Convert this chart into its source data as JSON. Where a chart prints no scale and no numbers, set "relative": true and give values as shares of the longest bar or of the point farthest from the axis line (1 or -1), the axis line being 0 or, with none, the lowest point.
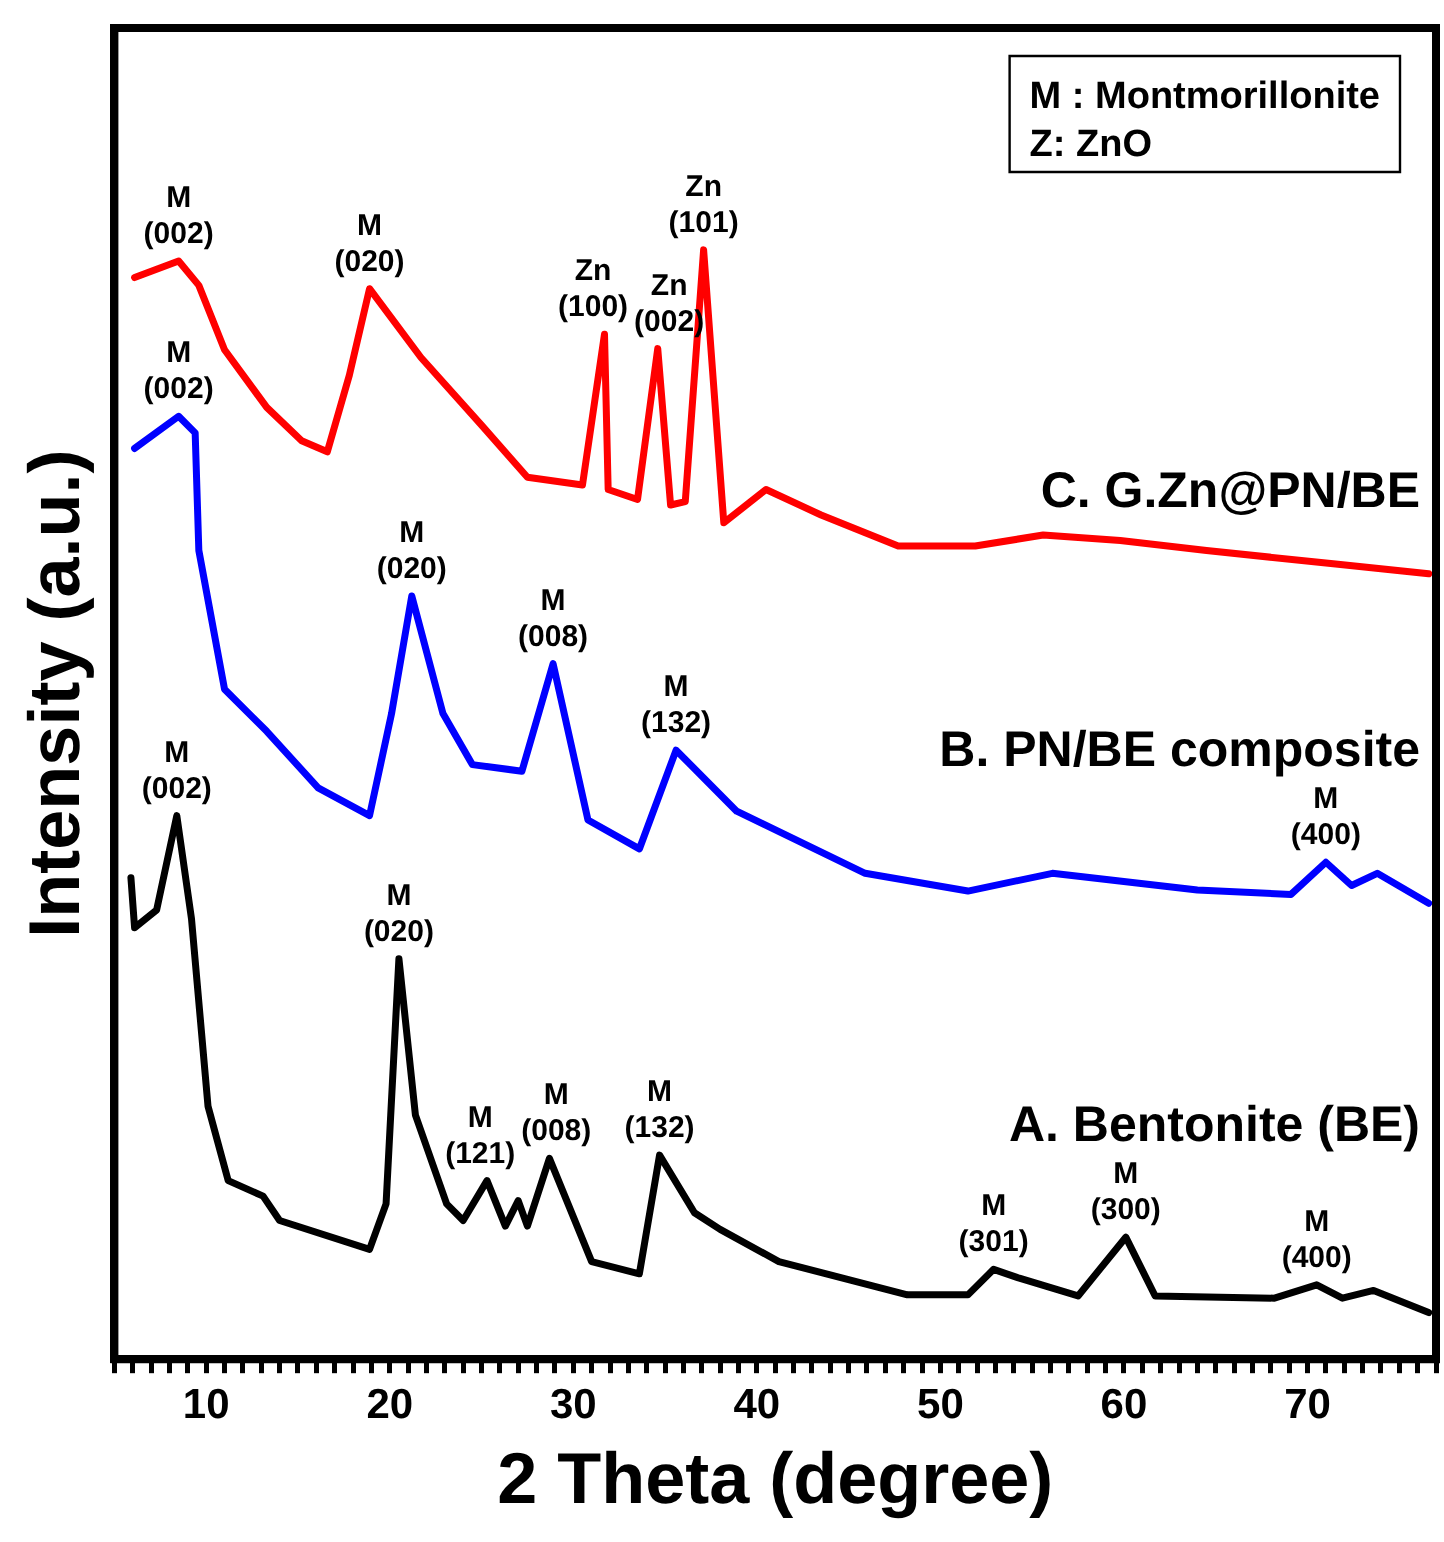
{
  "chart_data": {
    "type": "line",
    "xlabel": "2 Theta (degree)",
    "ylabel": "Intensity (a.u.)",
    "relative": true,
    "tick_labels": "x",
    "xlim": [
      5,
      77
    ],
    "xticks": [
      {
        "value": 5,
        "label": null
      },
      {
        "value": 6,
        "label": null
      },
      {
        "value": 7,
        "label": null
      },
      {
        "value": 8,
        "label": null
      },
      {
        "value": 9,
        "label": null
      },
      10,
      {
        "value": 11,
        "label": null
      },
      {
        "value": 12,
        "label": null
      },
      {
        "value": 13,
        "label": null
      },
      {
        "value": 14,
        "label": null
      },
      {
        "value": 15,
        "label": null
      },
      {
        "value": 16,
        "label": null
      },
      {
        "value": 17,
        "label": null
      },
      {
        "value": 18,
        "label": null
      },
      {
        "value": 19,
        "label": null
      },
      20,
      {
        "value": 21,
        "label": null
      },
      {
        "value": 22,
        "label": null
      },
      {
        "value": 23,
        "label": null
      },
      {
        "value": 24,
        "label": null
      },
      {
        "value": 25,
        "label": null
      },
      {
        "value": 26,
        "label": null
      },
      {
        "value": 27,
        "label": null
      },
      {
        "value": 28,
        "label": null
      },
      {
        "value": 29,
        "label": null
      },
      30,
      {
        "value": 31,
        "label": null
      },
      {
        "value": 32,
        "label": null
      },
      {
        "value": 33,
        "label": null
      },
      {
        "value": 34,
        "label": null
      },
      {
        "value": 35,
        "label": null
      },
      {
        "value": 36,
        "label": null
      },
      {
        "value": 37,
        "label": null
      },
      {
        "value": 38,
        "label": null
      },
      {
        "value": 39,
        "label": null
      },
      40,
      {
        "value": 41,
        "label": null
      },
      {
        "value": 42,
        "label": null
      },
      {
        "value": 43,
        "label": null
      },
      {
        "value": 44,
        "label": null
      },
      {
        "value": 45,
        "label": null
      },
      {
        "value": 46,
        "label": null
      },
      {
        "value": 47,
        "label": null
      },
      {
        "value": 48,
        "label": null
      },
      {
        "value": 49,
        "label": null
      },
      50,
      {
        "value": 51,
        "label": null
      },
      {
        "value": 52,
        "label": null
      },
      {
        "value": 53,
        "label": null
      },
      {
        "value": 54,
        "label": null
      },
      {
        "value": 55,
        "label": null
      },
      {
        "value": 56,
        "label": null
      },
      {
        "value": 57,
        "label": null
      },
      {
        "value": 58,
        "label": null
      },
      {
        "value": 59,
        "label": null
      },
      60,
      {
        "value": 61,
        "label": null
      },
      {
        "value": 62,
        "label": null
      },
      {
        "value": 63,
        "label": null
      },
      {
        "value": 64,
        "label": null
      },
      {
        "value": 65,
        "label": null
      },
      {
        "value": 66,
        "label": null
      },
      {
        "value": 67,
        "label": null
      },
      {
        "value": 68,
        "label": null
      },
      {
        "value": 69,
        "label": null
      },
      70,
      {
        "value": 71,
        "label": null
      },
      {
        "value": 72,
        "label": null
      },
      {
        "value": 73,
        "label": null
      },
      {
        "value": 74,
        "label": null
      },
      {
        "value": 75,
        "label": null
      },
      {
        "value": 76,
        "label": null
      },
      {
        "value": 77,
        "label": null
      }
    ],
    "series": [
      {
        "name": "C. G.Zn@PN/BE",
        "color": "#ff0000",
        "x": [
          6.1,
          8.5,
          9.6,
          11.0,
          13.3,
          15.2,
          16.6,
          17.8,
          18.9,
          21.7,
          25.0,
          27.5,
          30.5,
          31.7,
          31.9,
          33.5,
          34.6,
          35.3,
          36.1,
          37.1,
          38.2,
          40.5,
          43.5,
          47.7,
          51.9,
          55.6,
          59.8,
          64.5,
          71.4,
          76.6
        ],
        "values": [
          0.975,
          0.99,
          0.968,
          0.91,
          0.858,
          0.828,
          0.818,
          0.887,
          0.965,
          0.903,
          0.842,
          0.795,
          0.788,
          0.924,
          0.784,
          0.775,
          0.911,
          0.77,
          0.773,
          1.0,
          0.754,
          0.784,
          0.761,
          0.733,
          0.733,
          0.743,
          0.738,
          0.729,
          0.717,
          0.708
        ]
      },
      {
        "name": "B. PN/BE composite",
        "color": "#0000ff",
        "x": [
          6.1,
          8.5,
          9.4,
          9.6,
          11.0,
          13.3,
          16.1,
          18.9,
          20.1,
          21.2,
          22.9,
          24.5,
          27.2,
          28.9,
          30.8,
          33.6,
          35.6,
          38.9,
          45.9,
          51.5,
          56.1,
          64.0,
          69.1,
          71.0,
          72.4,
          73.8,
          76.6
        ],
        "values": [
          0.821,
          0.85,
          0.835,
          0.729,
          0.604,
          0.566,
          0.515,
          0.49,
          0.582,
          0.688,
          0.582,
          0.536,
          0.53,
          0.627,
          0.486,
          0.46,
          0.549,
          0.494,
          0.438,
          0.422,
          0.438,
          0.423,
          0.419,
          0.448,
          0.427,
          0.438,
          0.411
        ]
      },
      {
        "name": "A. Bentonite (BE)",
        "color": "#000000",
        "x": [
          5.9,
          6.1,
          7.3,
          8.4,
          9.2,
          10.1,
          11.2,
          13.1,
          14.0,
          18.9,
          19.8,
          20.5,
          21.4,
          23.1,
          24.0,
          25.3,
          26.3,
          27.0,
          27.5,
          28.7,
          31.0,
          33.6,
          34.7,
          36.6,
          38.0,
          41.2,
          48.2,
          51.5,
          52.9,
          54.3,
          57.5,
          60.1,
          61.7,
          68.2,
          70.5,
          71.9,
          73.6,
          76.6
        ],
        "values": [
          0.434,
          0.389,
          0.405,
          0.49,
          0.397,
          0.228,
          0.161,
          0.147,
          0.125,
          0.099,
          0.14,
          0.361,
          0.22,
          0.14,
          0.125,
          0.161,
          0.12,
          0.143,
          0.12,
          0.181,
          0.088,
          0.077,
          0.184,
          0.132,
          0.117,
          0.088,
          0.058,
          0.058,
          0.081,
          0.073,
          0.057,
          0.11,
          0.057,
          0.055,
          0.067,
          0.055,
          0.062,
          0.042
        ]
      }
    ],
    "annotations": [
      "M : Montmorillonite",
      "Z: ZnO",
      {
        "text": "M\n(002)",
        "x": 8.5,
        "y": 0.99
      },
      {
        "text": "M\n(020)",
        "x": 18.9,
        "y": 0.965
      },
      {
        "text": "Zn\n(100)",
        "x": 31.7,
        "y": 0.924
      },
      {
        "text": "Zn\n(002)",
        "x": 34.6,
        "y": 0.911
      },
      {
        "text": "Zn\n(101)",
        "x": 37.1,
        "y": 1.0
      },
      {
        "text": "M\n(002)",
        "x": 8.5,
        "y": 0.85
      },
      {
        "text": "M\n(020)",
        "x": 21.2,
        "y": 0.688
      },
      {
        "text": "M\n(008)",
        "x": 28.9,
        "y": 0.627
      },
      {
        "text": "M\n(132)",
        "x": 35.6,
        "y": 0.549
      },
      {
        "text": "M\n(400)",
        "x": 71.0,
        "y": 0.448
      },
      {
        "text": "M\n(002)",
        "x": 8.4,
        "y": 0.49
      },
      {
        "text": "M\n(020)",
        "x": 20.5,
        "y": 0.361
      },
      {
        "text": "M\n(121)",
        "x": 25.3,
        "y": 0.161
      },
      {
        "text": "M\n(008)",
        "x": 28.7,
        "y": 0.181
      },
      {
        "text": "M\n(132)",
        "x": 34.7,
        "y": 0.184
      },
      {
        "text": "M\n(301)",
        "x": 52.9,
        "y": 0.081
      },
      {
        "text": "M\n(300)",
        "x": 60.1,
        "y": 0.11
      },
      {
        "text": "M\n(400)",
        "x": 70.5,
        "y": 0.067
      }
    ]
  }
}
